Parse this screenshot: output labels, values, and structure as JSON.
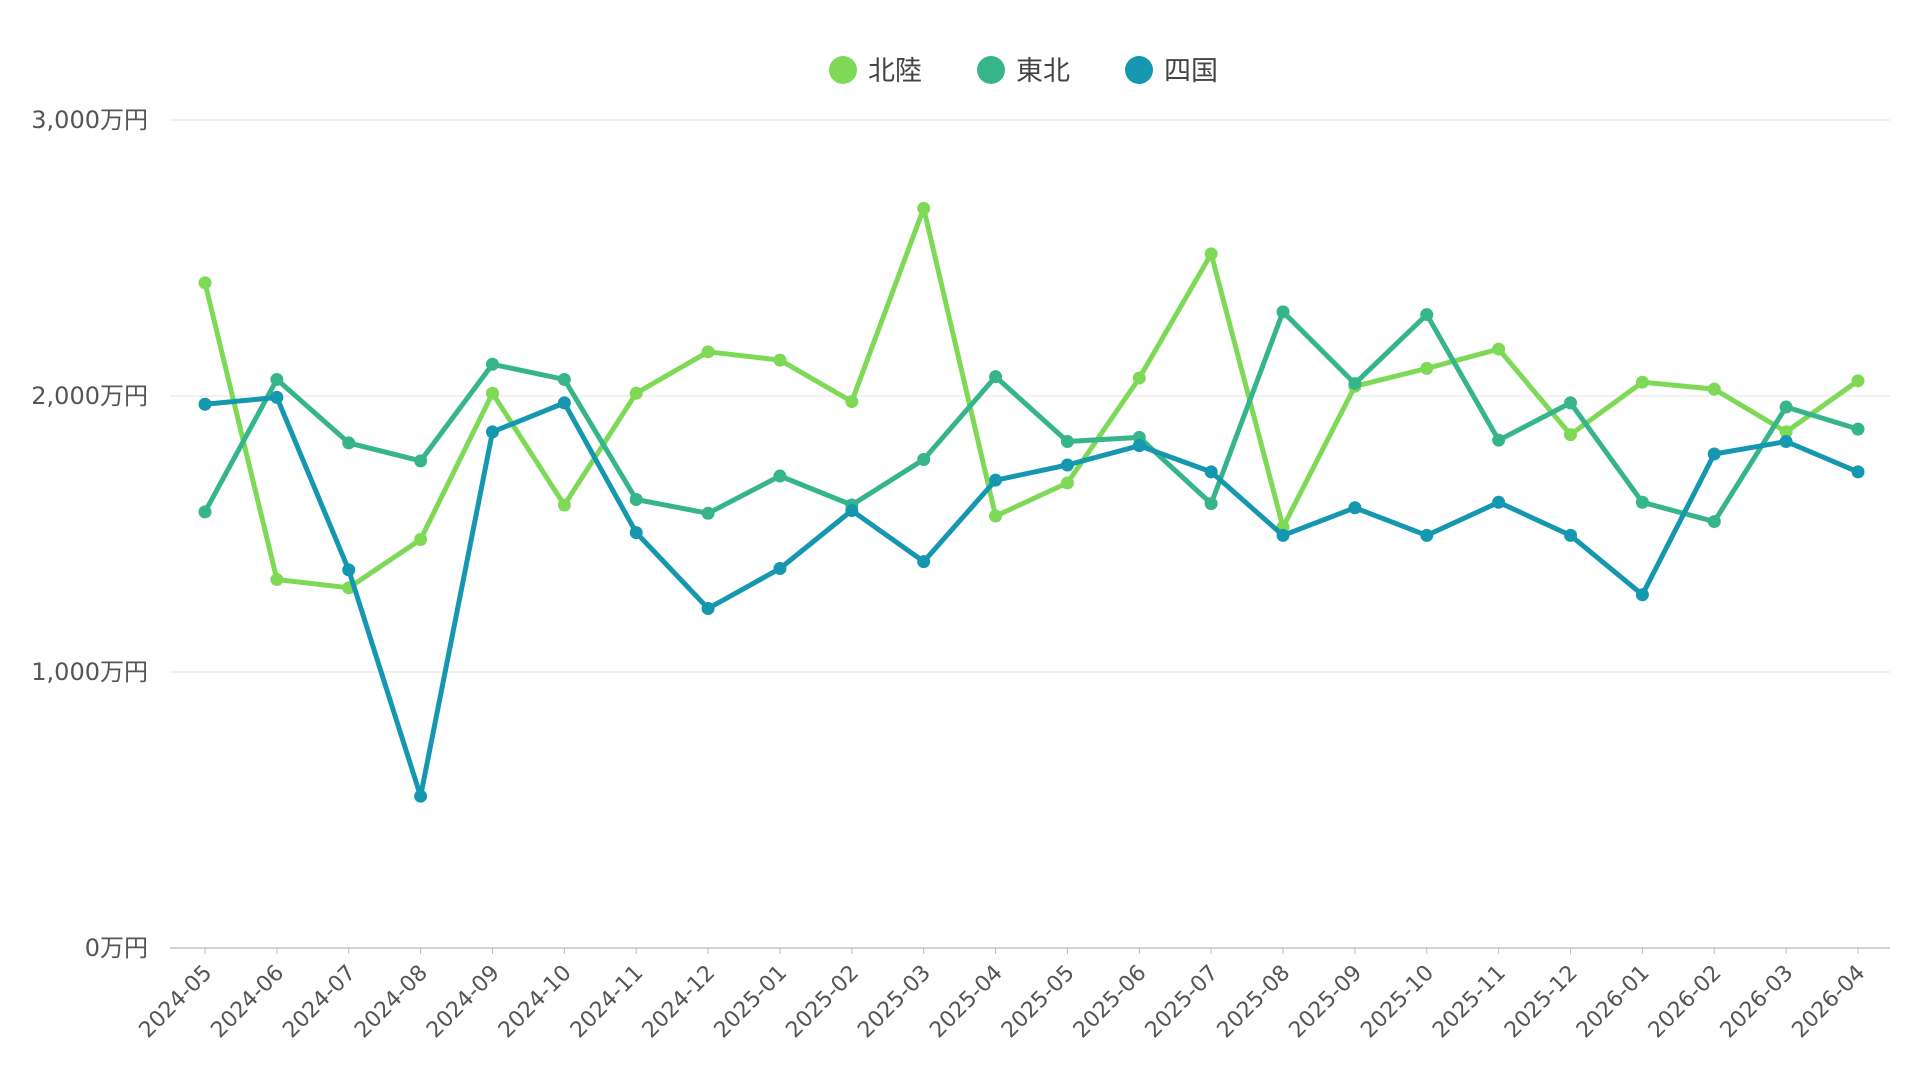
{
  "chart_data": {
    "type": "line",
    "title": "",
    "xlabel": "",
    "ylabel": "",
    "ylim": [
      0,
      3000
    ],
    "y_ticks": [
      {
        "value": 0,
        "label": "0万円"
      },
      {
        "value": 1000,
        "label": "1,000万円"
      },
      {
        "value": 2000,
        "label": "2,000万円"
      },
      {
        "value": 3000,
        "label": "3,000万円"
      }
    ],
    "grid": true,
    "legend_position": "top-center",
    "categories": [
      "2024-05",
      "2024-06",
      "2024-07",
      "2024-08",
      "2024-09",
      "2024-10",
      "2024-11",
      "2024-12",
      "2025-01",
      "2025-02",
      "2025-03",
      "2025-04",
      "2025-05",
      "2025-06",
      "2025-07",
      "2025-08",
      "2025-09",
      "2025-10",
      "2025-11",
      "2025-12",
      "2026-01",
      "2026-02",
      "2026-03",
      "2026-04"
    ],
    "series": [
      {
        "name": "北陸",
        "color": "#7ed957",
        "values": [
          2410,
          1335,
          1305,
          1480,
          2010,
          1605,
          2010,
          2160,
          2130,
          1980,
          2680,
          1565,
          1685,
          2065,
          2515,
          1525,
          2035,
          2100,
          2170,
          1860,
          2050,
          2025,
          1870,
          2055
        ]
      },
      {
        "name": "東北",
        "color": "#36b58a",
        "values": [
          1580,
          2060,
          1830,
          1765,
          2115,
          2060,
          1625,
          1575,
          1710,
          1605,
          1770,
          2070,
          1835,
          1850,
          1610,
          2305,
          2045,
          2295,
          1840,
          1975,
          1615,
          1545,
          1960,
          1880
        ]
      },
      {
        "name": "四国",
        "color": "#1597b0",
        "values": [
          1970,
          1995,
          1370,
          550,
          1870,
          1975,
          1505,
          1230,
          1375,
          1585,
          1400,
          1695,
          1750,
          1820,
          1725,
          1495,
          1595,
          1495,
          1615,
          1495,
          1280,
          1790,
          1835,
          1725
        ]
      }
    ]
  }
}
